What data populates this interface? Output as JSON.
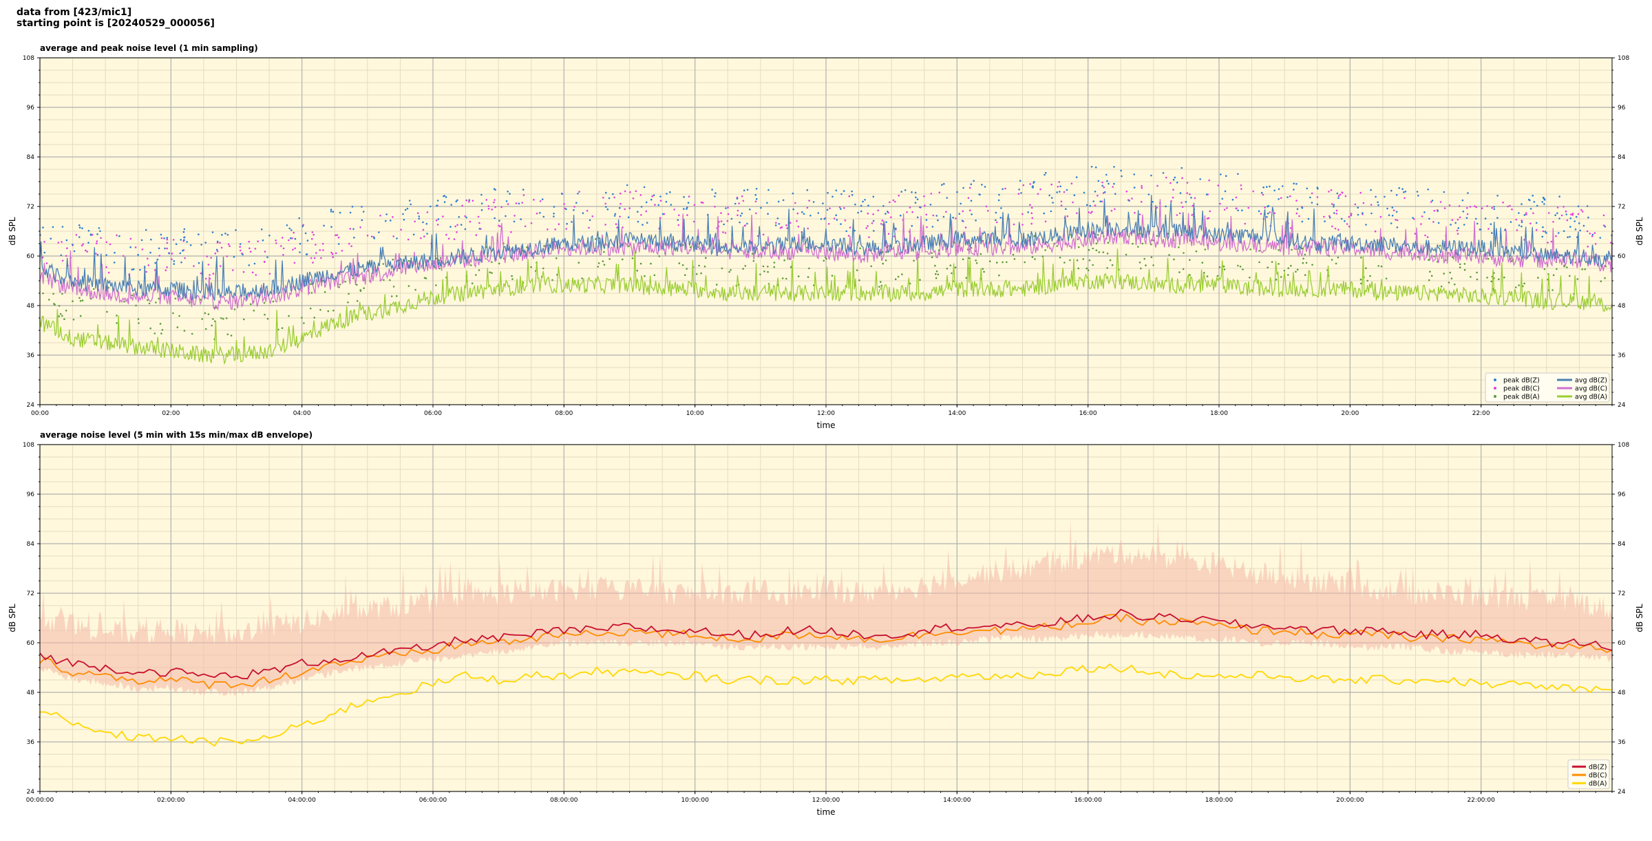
{
  "header": {
    "line1": "data from [423/mic1]",
    "line2": "starting point is [20240529_000056]"
  },
  "colors": {
    "background": "#fff8dc",
    "peak_z": "#2d7fd0",
    "peak_c": "#e040e0",
    "peak_a": "#5a9a3a",
    "avg_z": "#4a7fb5",
    "avg_c": "#d070d0",
    "avg_a": "#9acd32",
    "z": "#c8102e",
    "c": "#ff8c00",
    "a": "#ffd700",
    "envelope": "#f4b8a8"
  },
  "chart_data": [
    {
      "type": "line",
      "title": "average and peak noise level (1 min sampling)",
      "xlabel": "time",
      "ylabel": "dB SPL",
      "xlim": [
        0,
        24
      ],
      "ylim": [
        24,
        108
      ],
      "y_ticks": [
        24,
        36,
        48,
        60,
        72,
        84,
        96,
        108
      ],
      "x_ticks": [
        "00:00",
        "02:00",
        "04:00",
        "06:00",
        "08:00",
        "10:00",
        "12:00",
        "14:00",
        "16:00",
        "18:00",
        "20:00",
        "22:00"
      ],
      "grid": true,
      "legend_position": "bottom-right",
      "legend": [
        "peak dB(Z)",
        "peak dB(C)",
        "peak dB(A)",
        "avg dB(Z)",
        "avg dB(C)",
        "avg dB(A)"
      ],
      "x_hours": [
        0,
        0.5,
        1,
        1.5,
        2,
        2.5,
        3,
        3.5,
        4,
        4.5,
        5,
        5.5,
        6,
        6.5,
        7,
        7.5,
        8,
        8.5,
        9,
        9.5,
        10,
        10.5,
        11,
        11.5,
        12,
        12.5,
        13,
        13.5,
        14,
        14.5,
        15,
        15.5,
        16,
        16.5,
        17,
        17.5,
        18,
        18.5,
        19,
        19.5,
        20,
        20.5,
        21,
        21.5,
        22,
        22.5,
        23,
        23.5,
        24
      ],
      "series": [
        {
          "name": "avg dB(Z)",
          "values": [
            57,
            54,
            53,
            52,
            52,
            51,
            51,
            52,
            54,
            56,
            57,
            58,
            59,
            60,
            61,
            62,
            63,
            63,
            64,
            63,
            63,
            62,
            62,
            63,
            63,
            62,
            62,
            63,
            64,
            64,
            64,
            65,
            66,
            67,
            66,
            66,
            65,
            65,
            64,
            63,
            63,
            63,
            62,
            62,
            62,
            61,
            60,
            60,
            59
          ]
        },
        {
          "name": "avg dB(C)",
          "values": [
            55,
            52,
            51,
            50,
            50,
            49,
            49,
            50,
            52,
            54,
            55,
            57,
            58,
            59,
            60,
            61,
            62,
            62,
            62,
            62,
            62,
            61,
            61,
            61,
            61,
            60,
            61,
            61,
            62,
            62,
            62,
            63,
            64,
            65,
            64,
            64,
            63,
            63,
            62,
            62,
            62,
            61,
            61,
            60,
            60,
            59,
            59,
            59,
            58
          ]
        },
        {
          "name": "avg dB(A)",
          "values": [
            44,
            40,
            39,
            38,
            37,
            36,
            36,
            37,
            40,
            44,
            46,
            48,
            50,
            51,
            52,
            53,
            53,
            53,
            53,
            52,
            52,
            51,
            51,
            51,
            51,
            51,
            51,
            51,
            52,
            52,
            52,
            53,
            54,
            54,
            53,
            53,
            53,
            52,
            52,
            52,
            52,
            51,
            51,
            51,
            50,
            50,
            49,
            49,
            48
          ]
        },
        {
          "name": "peak dB(Z)",
          "values": [
            64,
            62,
            61,
            60,
            61,
            60,
            60,
            61,
            63,
            65,
            66,
            67,
            68,
            69,
            70,
            70,
            71,
            71,
            71,
            70,
            70,
            70,
            70,
            70,
            70,
            69,
            70,
            70,
            72,
            72,
            73,
            74,
            75,
            76,
            75,
            75,
            74,
            73,
            72,
            71,
            71,
            70,
            70,
            70,
            69,
            69,
            68,
            68,
            67
          ]
        },
        {
          "name": "peak dB(C)",
          "values": [
            62,
            60,
            59,
            58,
            59,
            58,
            58,
            59,
            61,
            63,
            64,
            65,
            66,
            67,
            68,
            69,
            70,
            70,
            70,
            69,
            69,
            68,
            68,
            68,
            68,
            68,
            68,
            69,
            70,
            71,
            71,
            72,
            73,
            74,
            73,
            73,
            72,
            71,
            70,
            70,
            69,
            69,
            68,
            68,
            67,
            67,
            66,
            66,
            65
          ]
        },
        {
          "name": "peak dB(A)",
          "values": [
            50,
            47,
            46,
            45,
            44,
            43,
            43,
            44,
            47,
            50,
            52,
            54,
            55,
            56,
            57,
            57,
            58,
            58,
            58,
            57,
            57,
            56,
            56,
            56,
            56,
            56,
            56,
            57,
            57,
            58,
            58,
            59,
            60,
            60,
            59,
            59,
            58,
            58,
            57,
            57,
            57,
            56,
            56,
            56,
            55,
            55,
            54,
            54,
            53
          ]
        }
      ]
    },
    {
      "type": "line",
      "title": "average noise level (5 min with 15s min/max dB envelope)",
      "xlabel": "time",
      "ylabel": "dB SPL",
      "xlim": [
        0,
        24
      ],
      "ylim": [
        24,
        108
      ],
      "y_ticks": [
        24,
        36,
        48,
        60,
        72,
        84,
        96,
        108
      ],
      "x_ticks": [
        "00:00:00",
        "02:00:00",
        "04:00:00",
        "06:00:00",
        "08:00:00",
        "10:00:00",
        "12:00:00",
        "14:00:00",
        "16:00:00",
        "18:00:00",
        "20:00:00",
        "22:00:00"
      ],
      "grid": true,
      "legend_position": "bottom-right",
      "legend": [
        "dB(Z)",
        "dB(C)",
        "dB(A)"
      ],
      "x_hours": [
        0,
        0.5,
        1,
        1.5,
        2,
        2.5,
        3,
        3.5,
        4,
        4.5,
        5,
        5.5,
        6,
        6.5,
        7,
        7.5,
        8,
        8.5,
        9,
        9.5,
        10,
        10.5,
        11,
        11.5,
        12,
        12.5,
        13,
        13.5,
        14,
        14.5,
        15,
        15.5,
        16,
        16.5,
        17,
        17.5,
        18,
        18.5,
        19,
        19.5,
        20,
        20.5,
        21,
        21.5,
        22,
        22.5,
        23,
        23.5,
        24
      ],
      "series": [
        {
          "name": "dB(Z)",
          "values": [
            57,
            55,
            54,
            53,
            53,
            52,
            52,
            53,
            55,
            56,
            57,
            58,
            59,
            61,
            61,
            62,
            63,
            63,
            64,
            63,
            63,
            62,
            62,
            63,
            63,
            62,
            62,
            63,
            64,
            64,
            64,
            65,
            66,
            67,
            66,
            66,
            65,
            64,
            64,
            63,
            63,
            63,
            62,
            62,
            62,
            61,
            60,
            60,
            59
          ]
        },
        {
          "name": "dB(C)",
          "values": [
            56,
            53,
            52,
            51,
            51,
            50,
            50,
            51,
            53,
            55,
            56,
            57,
            58,
            60,
            60,
            61,
            62,
            62,
            63,
            62,
            62,
            61,
            61,
            62,
            62,
            61,
            61,
            62,
            63,
            63,
            63,
            64,
            65,
            66,
            65,
            65,
            64,
            63,
            63,
            62,
            62,
            62,
            61,
            61,
            61,
            60,
            59,
            59,
            58
          ]
        },
        {
          "name": "dB(A)",
          "values": [
            44,
            40,
            38,
            37,
            37,
            36,
            36,
            37,
            40,
            43,
            46,
            48,
            50,
            52,
            51,
            52,
            52,
            53,
            53,
            52,
            52,
            51,
            51,
            51,
            51,
            51,
            51,
            51,
            52,
            52,
            52,
            53,
            54,
            54,
            53,
            52,
            52,
            52,
            52,
            51,
            51,
            51,
            51,
            51,
            50,
            50,
            49,
            49,
            48
          ]
        },
        {
          "name": "envelope max",
          "values": [
            66,
            64,
            63,
            62,
            63,
            62,
            62,
            64,
            65,
            67,
            68,
            69,
            70,
            71,
            72,
            72,
            73,
            73,
            73,
            72,
            72,
            72,
            72,
            72,
            73,
            72,
            73,
            74,
            76,
            77,
            78,
            79,
            81,
            82,
            81,
            80,
            79,
            77,
            76,
            75,
            74,
            73,
            72,
            72,
            71,
            71,
            70,
            70,
            68
          ]
        },
        {
          "name": "envelope min",
          "values": [
            54,
            51,
            50,
            49,
            49,
            48,
            48,
            49,
            51,
            53,
            54,
            55,
            56,
            57,
            58,
            59,
            60,
            60,
            60,
            60,
            60,
            59,
            59,
            59,
            59,
            59,
            59,
            60,
            60,
            61,
            61,
            61,
            62,
            62,
            62,
            61,
            61,
            60,
            60,
            60,
            59,
            59,
            59,
            58,
            58,
            57,
            57,
            57,
            56
          ]
        }
      ]
    }
  ]
}
